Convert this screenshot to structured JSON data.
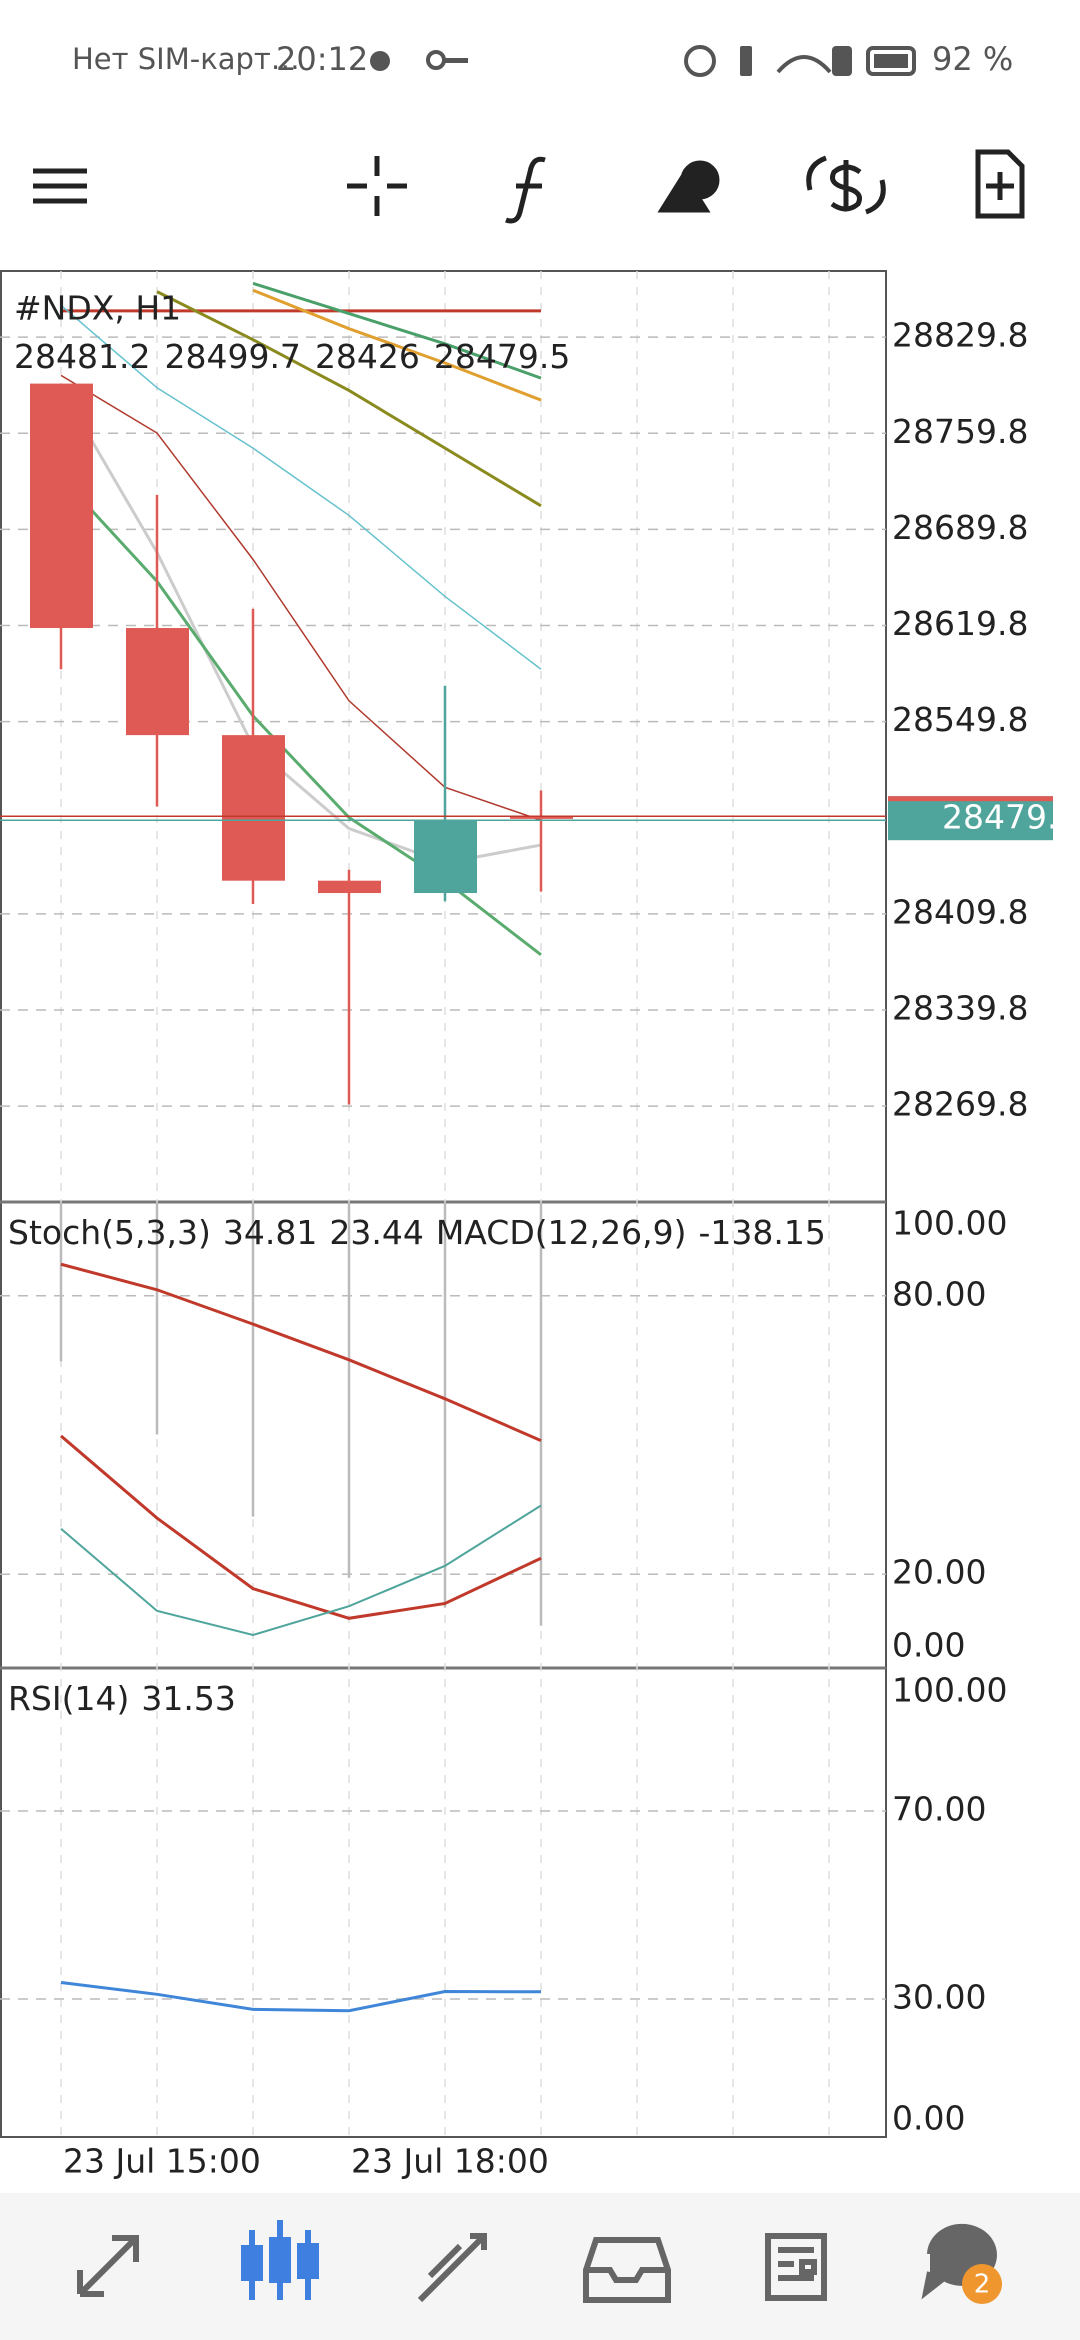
{
  "status_bar": {
    "carrier": "Нет SIM-карт…",
    "time": "20:12",
    "battery": "92 %"
  },
  "main_chart": {
    "symbol": "#NDX, H1",
    "ylim": [
      28200,
      28878
    ],
    "yticks": [
      28269.8,
      28339.8,
      28409.8,
      28549.8,
      28619.8,
      28689.8,
      28759.8,
      28829.8
    ],
    "up_color": "#4fa59b",
    "down_color": "#e05a55",
    "candles": [
      {
        "open": 28796,
        "high": 28796,
        "low": 28588,
        "close": 28618
      },
      {
        "open": 28618,
        "high": 28715,
        "low": 28488,
        "close": 28540
      },
      {
        "open": 28540,
        "high": 28632,
        "low": 28417,
        "close": 28434
      },
      {
        "open": 28434,
        "high": 28442,
        "low": 28271,
        "close": 28425
      },
      {
        "open": 28425,
        "high": 28576,
        "low": 28419,
        "close": 28478
      },
      {
        "open": 28481.2,
        "high": 28499.7,
        "low": 28426.0,
        "close": 28479.5
      }
    ],
    "lines": [
      {
        "color": "#c0392b",
        "width": 3,
        "values": [
          28849,
          28849,
          28849,
          28849,
          28849,
          28849
        ]
      },
      {
        "color": "#4aa06a",
        "width": 3,
        "values": [
          null,
          null,
          28869,
          28847,
          28825,
          28800
        ]
      },
      {
        "color": "#e0a030",
        "width": 3,
        "values": [
          null,
          null,
          28864,
          28836,
          28811,
          28784
        ]
      },
      {
        "color": "#8a8a1e",
        "width": 3,
        "values": [
          null,
          28863,
          28828,
          28791,
          28749,
          28707
        ]
      },
      {
        "color": "#66c2cc",
        "width": 1.5,
        "values": [
          28853,
          28793,
          28749,
          28700,
          28641,
          28588
        ]
      },
      {
        "color": "#b03a2e",
        "width": 1.5,
        "values": [
          28802,
          28760,
          28668,
          28565,
          28502,
          28478
        ]
      },
      {
        "color": "#cccccc",
        "width": 3,
        "values": [
          28793,
          28673,
          28532,
          28472,
          28447,
          28460
        ]
      },
      {
        "color": "#5aab6e",
        "width": 3,
        "values": [
          28728,
          28652,
          28554,
          28480,
          28434,
          28380
        ]
      }
    ]
  },
  "x_axis": {
    "categories": [
      "23 Jul 15:00",
      null,
      null,
      "23 Jul 18:00",
      null,
      null
    ]
  },
  "stoch_panel": {
    "title": "Stoch(5,3,3)",
    "macd_title": "MACD(12,26,9)",
    "macd_value": -138.15,
    "ylim": [
      0,
      100
    ],
    "yticks": [
      {
        "value": 0,
        "label": "0.00"
      },
      {
        "value": 20,
        "label": "20.00"
      },
      {
        "value": 80,
        "label": "80.00"
      },
      {
        "value": 100,
        "label": "100.00"
      }
    ],
    "macd_bars": [
      65.9,
      50.1,
      32.4,
      19.2,
      12.8,
      8.9
    ],
    "lines": [
      {
        "color": "#c0392b",
        "width": 3,
        "values": [
          86.8,
          81.3,
          73.9,
          66.2,
          57.8,
          48.8
        ]
      },
      {
        "color": "#c0392b",
        "width": 3,
        "values": [
          49.8,
          32.1,
          16.9,
          10.5,
          13.7,
          23.44
        ]
      },
      {
        "color": "#4fa59b",
        "width": 2,
        "values": [
          29.8,
          12.1,
          6.9,
          13.1,
          21.8,
          34.81
        ]
      }
    ]
  },
  "rsi_panel": {
    "title": "RSI(14)",
    "ylim": [
      0,
      100
    ],
    "yticks": [
      {
        "value": 0,
        "label": "0.00"
      },
      {
        "value": 30,
        "label": "30.00"
      },
      {
        "value": 70,
        "label": "70.00"
      },
      {
        "value": 100,
        "label": "100.00"
      }
    ],
    "lines": [
      {
        "color": "#3f86d8",
        "width": 3,
        "values": [
          33.5,
          31,
          27.8,
          27.5,
          31.6,
          31.53
        ]
      }
    ]
  }
}
